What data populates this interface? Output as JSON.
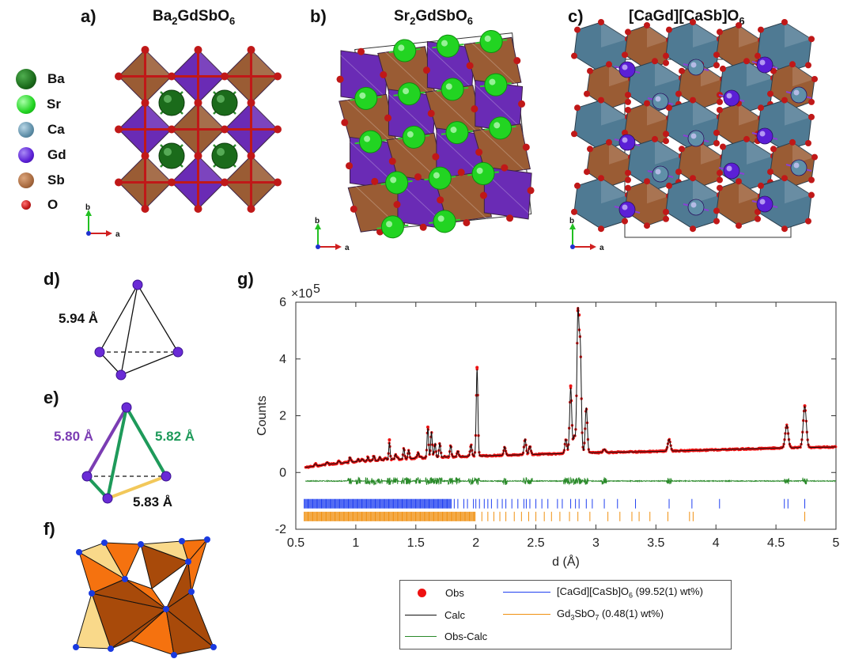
{
  "panels": {
    "a": {
      "label": "a)",
      "title_parts": [
        "Ba",
        "2",
        "GdSbO",
        "6"
      ]
    },
    "b": {
      "label": "b)",
      "title_parts": [
        "Sr",
        "2",
        "GdSbO",
        "6"
      ]
    },
    "c": {
      "label": "c)",
      "title_parts": [
        "[CaGd][CaSb]O",
        "6",
        "",
        ""
      ]
    },
    "d": {
      "label": "d)",
      "distance": "5.94 Å"
    },
    "e": {
      "label": "e)",
      "distances": [
        "5.80 Å",
        "5.82 Å",
        "5.83 Å"
      ]
    },
    "f": {
      "label": "f)"
    },
    "g": {
      "label": "g)"
    }
  },
  "atom_legend": [
    {
      "label": "Ba",
      "color": "#1b6b1b"
    },
    {
      "label": "Sr",
      "color": "#22d422"
    },
    {
      "label": "Ca",
      "color": "#5f8fa8"
    },
    {
      "label": "Gd",
      "color": "#5b1fd6"
    },
    {
      "label": "Sb",
      "color": "#a86a3f"
    },
    {
      "label": "O",
      "color": "#c01818"
    }
  ],
  "axis_labels": {
    "b": "b",
    "a": "a"
  },
  "colors": {
    "gd_poly": "#6a2bb5",
    "sb_poly": "#9a5c34",
    "ca_poly": "#4f7a93",
    "oxygen": "#c01818",
    "fpoly_dark": "#a84a0a",
    "fpoly_mid": "#f5720f",
    "fpoly_light": "#f9d98a"
  },
  "chart_data": {
    "type": "line",
    "title": "",
    "xlabel": "d (Å)",
    "ylabel": "Counts",
    "y_multiplier": "×10",
    "y_multiplier_exp": "5",
    "xlim": [
      0.5,
      5
    ],
    "ylim": [
      -2,
      6
    ],
    "xticks": [
      0.5,
      1,
      1.5,
      2,
      2.5,
      3,
      3.5,
      4,
      4.5,
      5
    ],
    "yticks": [
      -2,
      0,
      2,
      4,
      6
    ],
    "background": [
      [
        0.58,
        0.18
      ],
      [
        0.8,
        0.3
      ],
      [
        1.0,
        0.38
      ],
      [
        1.5,
        0.5
      ],
      [
        2.0,
        0.58
      ],
      [
        2.5,
        0.64
      ],
      [
        3.0,
        0.7
      ],
      [
        3.5,
        0.74
      ],
      [
        4.0,
        0.8
      ],
      [
        4.5,
        0.86
      ],
      [
        5.0,
        0.9
      ]
    ],
    "peaks": [
      {
        "d": 0.95,
        "h": 0.12
      },
      {
        "d": 1.02,
        "h": 0.1
      },
      {
        "d": 1.1,
        "h": 0.15
      },
      {
        "d": 1.15,
        "h": 0.1
      },
      {
        "d": 1.2,
        "h": 0.12
      },
      {
        "d": 1.28,
        "h": 0.62
      },
      {
        "d": 1.33,
        "h": 0.18
      },
      {
        "d": 1.4,
        "h": 0.35
      },
      {
        "d": 1.44,
        "h": 0.25
      },
      {
        "d": 1.52,
        "h": 0.2
      },
      {
        "d": 1.6,
        "h": 1.0
      },
      {
        "d": 1.63,
        "h": 0.9
      },
      {
        "d": 1.66,
        "h": 0.5
      },
      {
        "d": 1.7,
        "h": 0.45
      },
      {
        "d": 1.79,
        "h": 0.35
      },
      {
        "d": 1.85,
        "h": 0.2
      },
      {
        "d": 1.96,
        "h": 0.4
      },
      {
        "d": 2.01,
        "h": 3.05
      },
      {
        "d": 2.24,
        "h": 0.3
      },
      {
        "d": 2.41,
        "h": 0.55
      },
      {
        "d": 2.45,
        "h": 0.3
      },
      {
        "d": 2.75,
        "h": 0.5
      },
      {
        "d": 2.79,
        "h": 2.3
      },
      {
        "d": 2.82,
        "h": 0.6
      },
      {
        "d": 2.85,
        "h": 4.8
      },
      {
        "d": 2.87,
        "h": 3.6
      },
      {
        "d": 2.92,
        "h": 1.6
      },
      {
        "d": 3.07,
        "h": 0.12
      },
      {
        "d": 3.61,
        "h": 0.42
      },
      {
        "d": 4.59,
        "h": 0.8
      },
      {
        "d": 4.74,
        "h": 1.45
      }
    ],
    "obs_outliers": [
      {
        "d": 2.85,
        "y": 5.7
      },
      {
        "d": 2.86,
        "y": 5.55
      },
      {
        "d": 2.01,
        "y": 3.7
      },
      {
        "d": 2.79,
        "y": 3.05
      },
      {
        "d": 4.74,
        "y": 2.35
      },
      {
        "d": 1.6,
        "y": 1.6
      },
      {
        "d": 1.28,
        "y": 1.15
      }
    ],
    "diff_offset": -0.3,
    "tick_rows": [
      {
        "name": "[CaGd][CaSb]O6 (99.52(1) wt%)",
        "y": -1.1,
        "dense_from": 0.57,
        "dense_to": 1.8,
        "sparse": [
          1.82,
          1.85,
          1.9,
          1.93,
          1.98,
          2.0,
          2.03,
          2.07,
          2.1,
          2.13,
          2.18,
          2.22,
          2.25,
          2.3,
          2.35,
          2.4,
          2.42,
          2.45,
          2.5,
          2.55,
          2.6,
          2.68,
          2.72,
          2.79,
          2.83,
          2.86,
          2.92,
          2.97,
          3.07,
          3.18,
          3.33,
          3.61,
          3.8,
          4.03,
          4.57,
          4.6,
          4.74
        ]
      },
      {
        "name": "Gd3SbO7 (0.48(1) wt%)",
        "y": -1.55,
        "dense_from": 0.57,
        "dense_to": 2.0,
        "sparse": [
          2.05,
          2.1,
          2.15,
          2.2,
          2.25,
          2.32,
          2.38,
          2.44,
          2.5,
          2.57,
          2.63,
          2.7,
          2.78,
          2.85,
          2.95,
          3.1,
          3.2,
          3.3,
          3.36,
          3.45,
          3.6,
          3.78,
          3.81,
          4.74
        ]
      }
    ],
    "legend": [
      {
        "name": "Obs",
        "color": "#ee1111",
        "marker": "dot"
      },
      {
        "name": "Calc",
        "color": "#111111",
        "marker": "line"
      },
      {
        "name": "Obs-Calc",
        "color": "#2a8a2a",
        "marker": "line"
      },
      {
        "name_parts": [
          "[CaGd][CaSb]O",
          "6",
          " (99.52(1) wt%)"
        ],
        "color": "#1f3ff0",
        "marker": "line"
      },
      {
        "name_parts": [
          "Gd",
          "3",
          "SbO",
          "7",
          " (0.48(1) wt%)"
        ],
        "color": "#f09010",
        "marker": "line"
      }
    ]
  }
}
